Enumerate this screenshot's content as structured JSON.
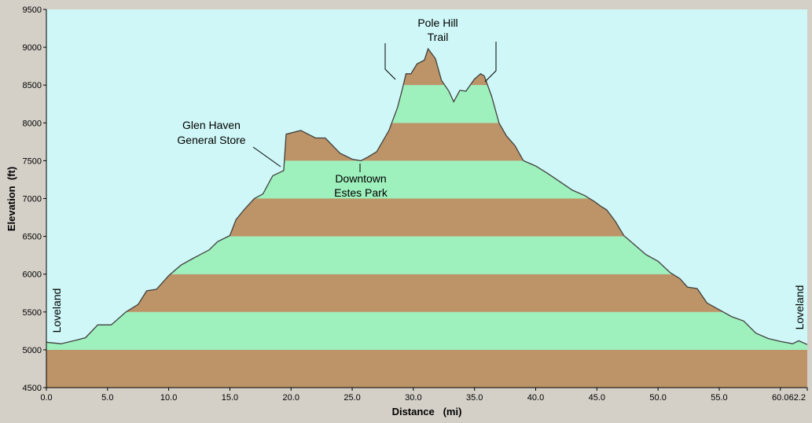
{
  "chart_data": {
    "type": "area",
    "xlabel": "Distance   (mi)",
    "ylabel": "Elevation  (ft)",
    "xlim": [
      0,
      62.2
    ],
    "ylim": [
      4500,
      9500
    ],
    "x_ticks": [
      "0.0",
      "5.0",
      "10.0",
      "15.0",
      "20.0",
      "25.0",
      "30.0",
      "35.0",
      "40.0",
      "45.0",
      "50.0",
      "55.0",
      "60.0",
      "62.2"
    ],
    "x_tick_values": [
      0,
      5,
      10,
      15,
      20,
      25,
      30,
      35,
      40,
      45,
      50,
      55,
      60,
      62.2
    ],
    "y_ticks": [
      "4500",
      "5000",
      "5500",
      "6000",
      "6500",
      "7000",
      "7500",
      "8000",
      "8500",
      "9000",
      "9500"
    ],
    "y_tick_values": [
      4500,
      5000,
      5500,
      6000,
      6500,
      7000,
      7500,
      8000,
      8500,
      9000,
      9500
    ],
    "band_colors": [
      "#bc9468",
      "#9ef0bc"
    ],
    "background_color": "#cff7f7",
    "line_color": "#404040",
    "series": [
      {
        "x": [
          0,
          1.2,
          2.5,
          3.2,
          4.2,
          5.3,
          6.5,
          7.5,
          8.2,
          9.0,
          10.0,
          11.0,
          12.0,
          13.3,
          14.0,
          15.0,
          15.5,
          16.2,
          17.0,
          17.7,
          18.5,
          19.4,
          19.6,
          20.8,
          22.0,
          22.8,
          24.0,
          25.0,
          25.7,
          26.3,
          27.0,
          28.0,
          28.7,
          29.1,
          29.4,
          29.8,
          30.3,
          30.9,
          31.2,
          31.8,
          32.3,
          32.9,
          33.3,
          33.8,
          34.3,
          35.0,
          35.5,
          35.8,
          36.4,
          37.0,
          37.6,
          38.3,
          39.0,
          40.0,
          41.0,
          42.0,
          43.0,
          44.0,
          44.8,
          45.3,
          45.8,
          46.5,
          47.2,
          48.0,
          49.0,
          50.0,
          51.0,
          51.8,
          52.4,
          53.2,
          54.0,
          55.0,
          56.0,
          57.0,
          58.0,
          59.0,
          60.0,
          61.0,
          61.5,
          62.2
        ],
        "y": [
          5100,
          5080,
          5130,
          5160,
          5330,
          5330,
          5500,
          5600,
          5780,
          5800,
          5980,
          6120,
          6210,
          6320,
          6430,
          6510,
          6720,
          6860,
          7000,
          7060,
          7300,
          7370,
          7850,
          7900,
          7800,
          7800,
          7600,
          7520,
          7500,
          7550,
          7620,
          7900,
          8200,
          8450,
          8650,
          8650,
          8780,
          8830,
          8980,
          8850,
          8560,
          8420,
          8280,
          8430,
          8420,
          8580,
          8650,
          8620,
          8350,
          8000,
          7830,
          7700,
          7500,
          7430,
          7330,
          7220,
          7110,
          7040,
          6960,
          6900,
          6850,
          6700,
          6510,
          6400,
          6260,
          6170,
          6020,
          5940,
          5830,
          5810,
          5620,
          5530,
          5440,
          5380,
          5220,
          5150,
          5110,
          5080,
          5120,
          5070
        ]
      }
    ]
  },
  "annotations": {
    "glen_haven_line1": "Glen Haven",
    "glen_haven_line2": "General Store",
    "downtown_line1": "Downtown",
    "downtown_line2": "Estes Park",
    "pole_hill_line1": "Pole Hill",
    "pole_hill_line2": "Trail",
    "loveland_start": "Loveland",
    "loveland_end": "Loveland"
  }
}
